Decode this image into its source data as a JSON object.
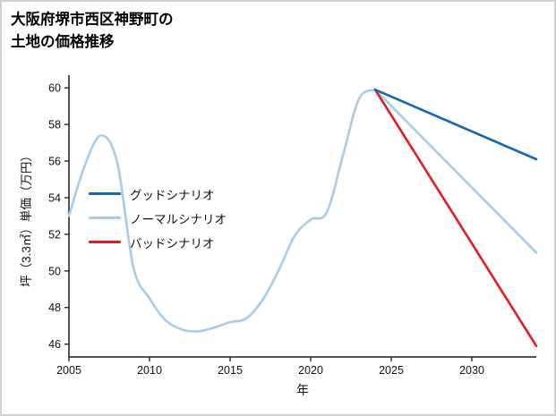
{
  "title_line1": "大阪府堺市西区神野町の",
  "title_line2": "土地の価格推移",
  "chart_data": {
    "type": "line",
    "title": "大阪府堺市西区神野町の土地の価格推移",
    "xlabel": "年",
    "ylabel": "坪（3.3㎡）単価（万円）",
    "x_range": [
      2005,
      2034
    ],
    "y_range": [
      45.3,
      60.4
    ],
    "x_ticks": [
      2005,
      2010,
      2015,
      2020,
      2025,
      2030
    ],
    "y_ticks": [
      46,
      48,
      50,
      52,
      54,
      56,
      58,
      60
    ],
    "grid": false,
    "legend_position": "middle-left-inside",
    "legend": [
      {
        "label": "グッドシナリオ",
        "color": "#1467b0"
      },
      {
        "label": "ノーマルシナリオ",
        "color": "#a7cbe8"
      },
      {
        "label": "バッドシナリオ",
        "color": "#e8191f"
      }
    ],
    "series": [
      {
        "id": "history-normal",
        "name": "実績（ノーマルシナリオ）",
        "color": "#a7cbe8",
        "smooth": true,
        "width": 2.6,
        "x": [
          2005,
          2006,
          2007,
          2008,
          2009,
          2010,
          2011,
          2012,
          2013,
          2014,
          2015,
          2016,
          2017,
          2018,
          2019,
          2020,
          2021,
          2022,
          2023,
          2024
        ],
        "y": [
          53.0,
          55.8,
          57.4,
          55.9,
          50.2,
          48.5,
          47.3,
          46.8,
          46.7,
          46.9,
          47.2,
          47.4,
          48.4,
          50.0,
          51.9,
          52.8,
          53.2,
          56.3,
          59.4,
          59.9
        ]
      },
      {
        "id": "normal-scenario",
        "name": "ノーマルシナリオ",
        "color": "#a7cbe8",
        "smooth": false,
        "width": 2.6,
        "x": [
          2024,
          2034
        ],
        "y": [
          59.9,
          51.0
        ]
      },
      {
        "id": "bad-scenario",
        "name": "バッドシナリオ",
        "color": "#e8191f",
        "smooth": false,
        "width": 2.6,
        "x": [
          2024,
          2034
        ],
        "y": [
          59.9,
          45.9
        ]
      },
      {
        "id": "good-scenario",
        "name": "グッドシナリオ",
        "color": "#1467b0",
        "smooth": false,
        "width": 2.6,
        "x": [
          2024,
          2034
        ],
        "y": [
          59.9,
          56.1
        ]
      }
    ]
  }
}
